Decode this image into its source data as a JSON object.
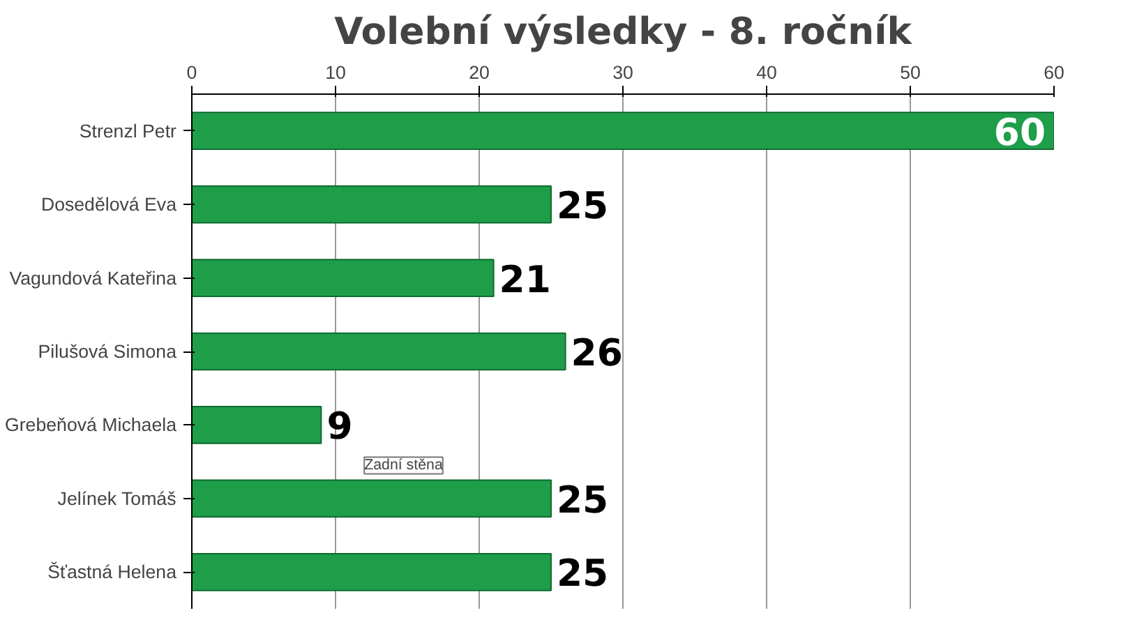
{
  "chart_data": {
    "type": "bar",
    "orientation": "horizontal",
    "title": "Volební výsledky - 8. ročník",
    "categories": [
      "Strenzl Petr",
      "Dosedělová Eva",
      "Vagundová Kateřina",
      "Pilušová Simona",
      "Grebeňová Michaela",
      "Jelínek Tomáš",
      "Šťastná Helena"
    ],
    "values": [
      60,
      25,
      21,
      26,
      9,
      25,
      25
    ],
    "color": "#1f9e4a",
    "xlim": [
      0,
      60
    ],
    "xticks": [
      0,
      10,
      20,
      30,
      40,
      50,
      60
    ],
    "grid": "x",
    "data_labels": true,
    "annotations": [
      "Zadní stěna"
    ]
  }
}
